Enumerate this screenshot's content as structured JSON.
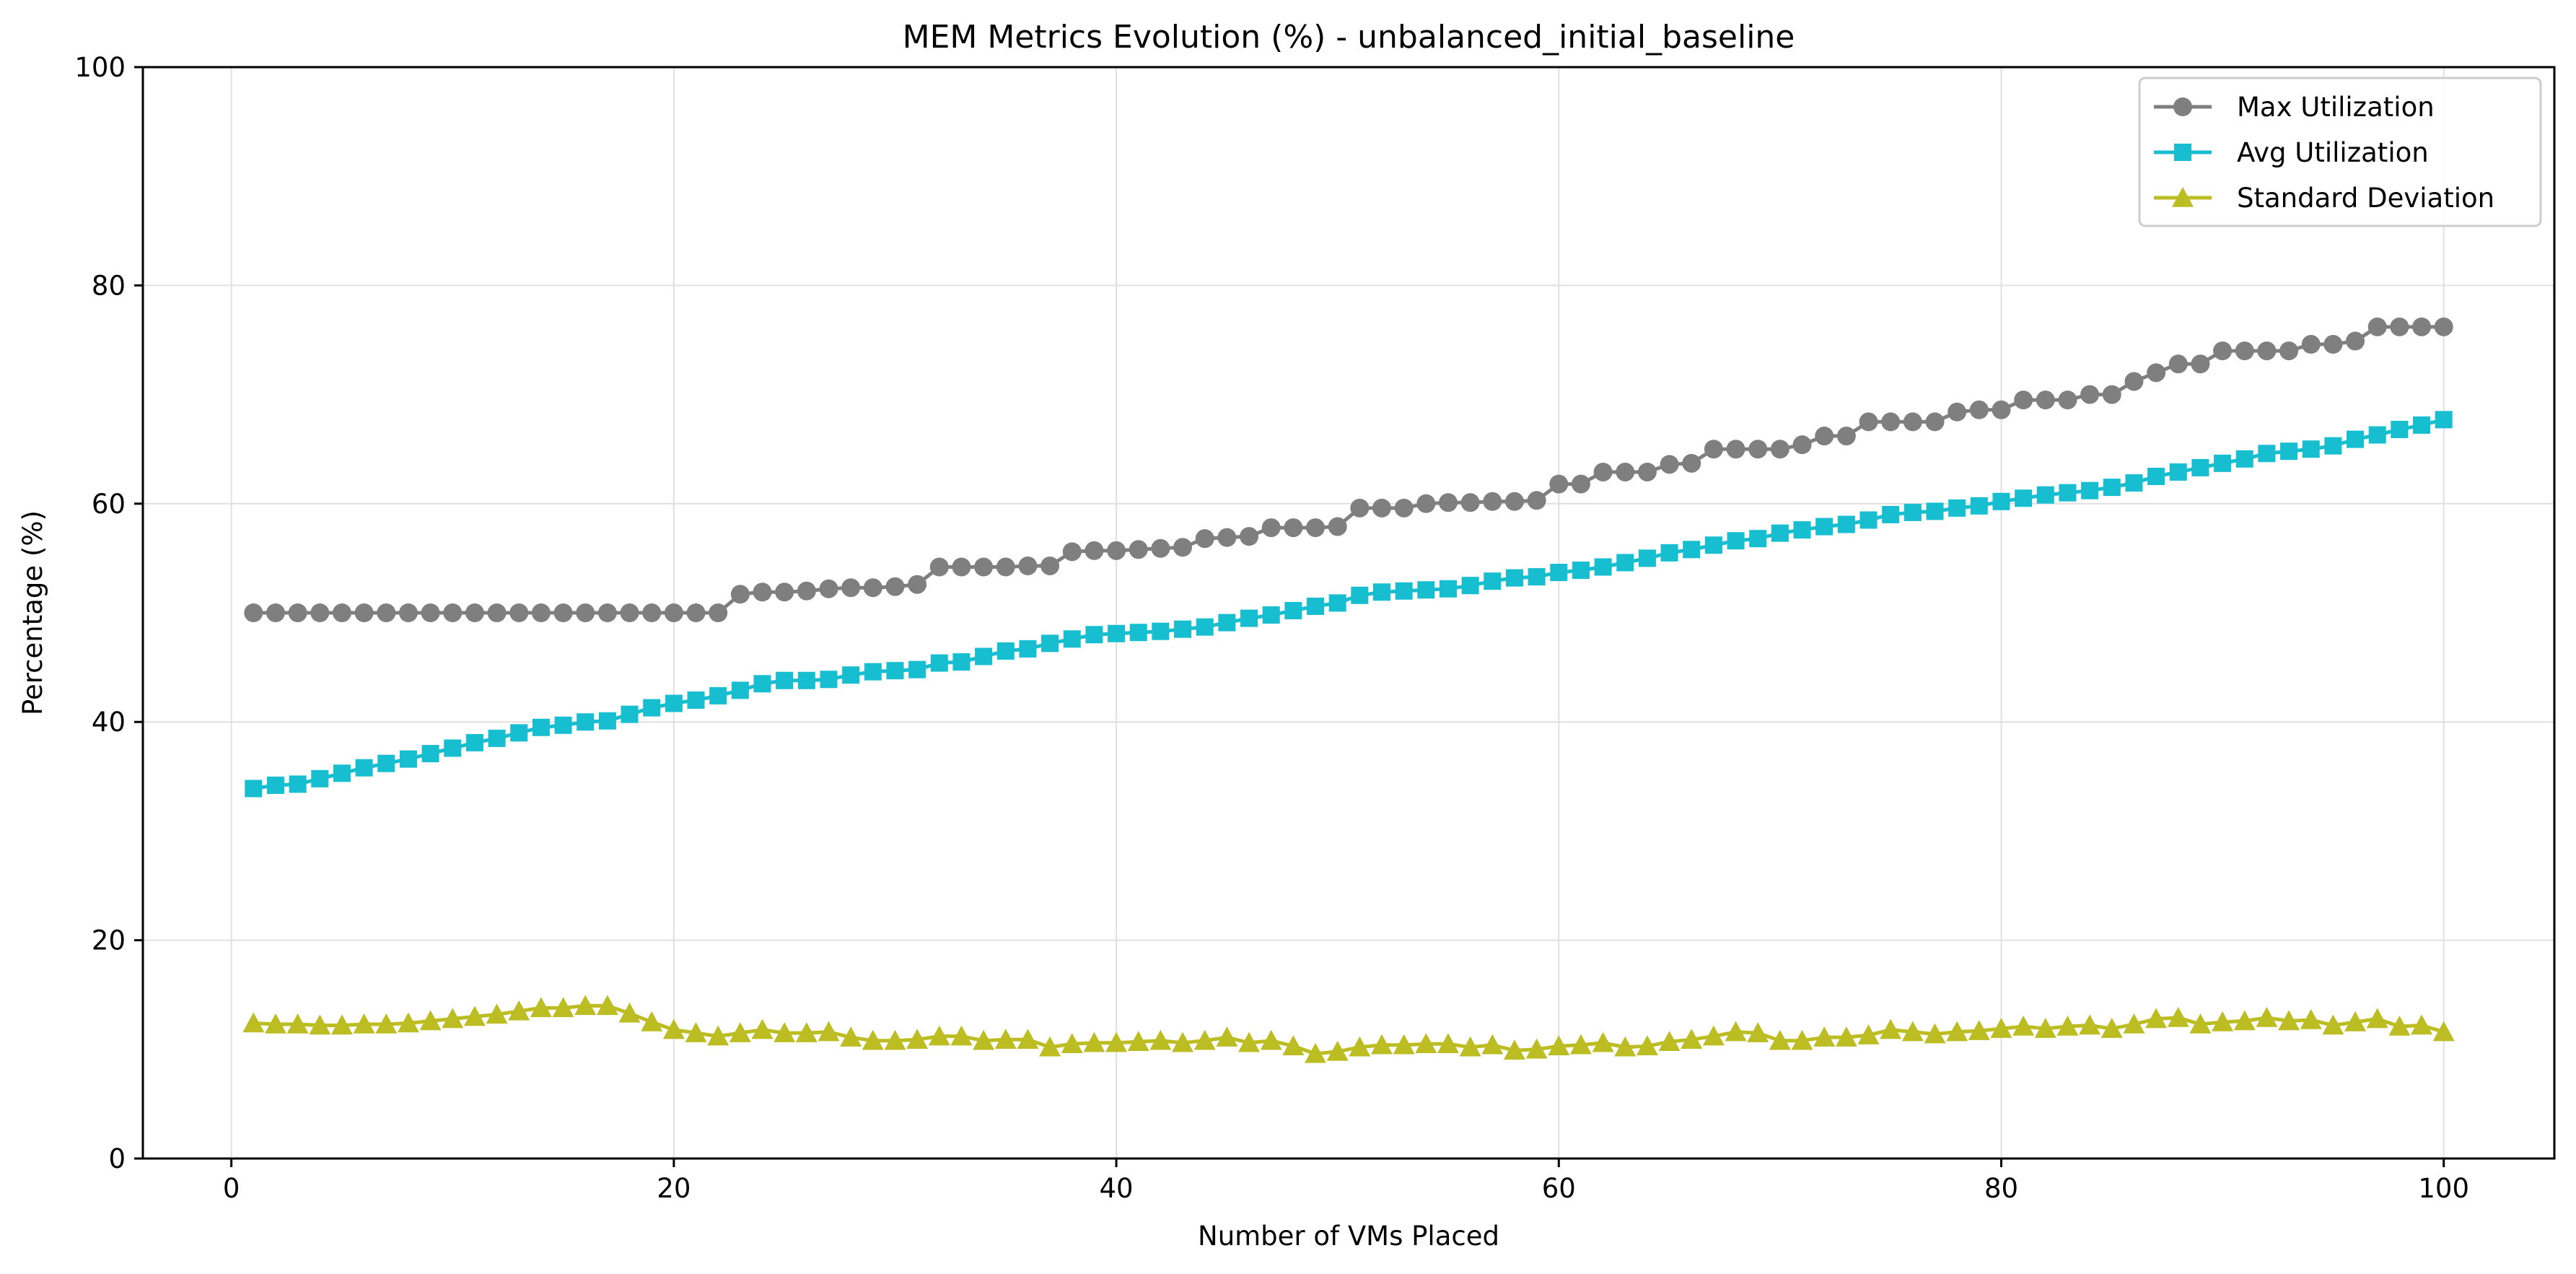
{
  "chart_data": {
    "type": "line",
    "title": "MEM Metrics Evolution (%) - unbalanced_initial_baseline",
    "xlabel": "Number of VMs Placed",
    "ylabel": "Percentage (%)",
    "xlim": [
      -4,
      105
    ],
    "ylim": [
      0,
      100
    ],
    "xticks": [
      0,
      20,
      40,
      60,
      80,
      100
    ],
    "yticks": [
      0,
      20,
      40,
      60,
      80,
      100
    ],
    "grid": true,
    "legend_position": "top-right",
    "x": [
      1,
      2,
      3,
      4,
      5,
      6,
      7,
      8,
      9,
      10,
      11,
      12,
      13,
      14,
      15,
      16,
      17,
      18,
      19,
      20,
      21,
      22,
      23,
      24,
      25,
      26,
      27,
      28,
      29,
      30,
      31,
      32,
      33,
      34,
      35,
      36,
      37,
      38,
      39,
      40,
      41,
      42,
      43,
      44,
      45,
      46,
      47,
      48,
      49,
      50,
      51,
      52,
      53,
      54,
      55,
      56,
      57,
      58,
      59,
      60,
      61,
      62,
      63,
      64,
      65,
      66,
      67,
      68,
      69,
      70,
      71,
      72,
      73,
      74,
      75,
      76,
      77,
      78,
      79,
      80,
      81,
      82,
      83,
      84,
      85,
      86,
      87,
      88,
      89,
      90,
      91,
      92,
      93,
      94,
      95,
      96,
      97,
      98,
      99,
      100
    ],
    "series": [
      {
        "name": "Max Utilization",
        "color": "#7f7f7f",
        "marker": "circle",
        "values": [
          50,
          50,
          50,
          50,
          50,
          50,
          50,
          50,
          50,
          50,
          50,
          50,
          50,
          50,
          50,
          50,
          50,
          50,
          50,
          50,
          50,
          50,
          51.7,
          51.9,
          51.9,
          52,
          52.2,
          52.3,
          52.3,
          52.4,
          52.6,
          54.2,
          54.2,
          54.2,
          54.2,
          54.3,
          54.3,
          55.6,
          55.7,
          55.7,
          55.8,
          55.9,
          56,
          56.8,
          56.9,
          57,
          57.8,
          57.8,
          57.8,
          57.9,
          59.6,
          59.6,
          59.6,
          60,
          60.1,
          60.1,
          60.2,
          60.2,
          60.3,
          61.8,
          61.8,
          62.9,
          62.9,
          62.9,
          63.6,
          63.7,
          65,
          65,
          65,
          65,
          65.4,
          66.2,
          66.2,
          67.5,
          67.5,
          67.5,
          67.5,
          68.4,
          68.6,
          68.6,
          69.5,
          69.5,
          69.5,
          70,
          70,
          71.2,
          72,
          72.8,
          72.8,
          74,
          74,
          74,
          74,
          74.6,
          74.6,
          74.9,
          76.2,
          76.2,
          76.2,
          76.2
        ]
      },
      {
        "name": "Avg Utilization",
        "color": "#17becf",
        "marker": "square",
        "values": [
          33.9,
          34.2,
          34.3,
          34.8,
          35.3,
          35.8,
          36.2,
          36.6,
          37.1,
          37.6,
          38.1,
          38.5,
          39,
          39.5,
          39.7,
          40,
          40.1,
          40.7,
          41.3,
          41.7,
          42,
          42.4,
          42.9,
          43.5,
          43.8,
          43.8,
          43.9,
          44.3,
          44.6,
          44.7,
          44.8,
          45.4,
          45.5,
          46,
          46.5,
          46.7,
          47.2,
          47.6,
          48,
          48.1,
          48.2,
          48.3,
          48.5,
          48.7,
          49.1,
          49.5,
          49.8,
          50.2,
          50.6,
          50.9,
          51.6,
          51.9,
          52,
          52.1,
          52.2,
          52.5,
          52.9,
          53.2,
          53.3,
          53.7,
          53.9,
          54.2,
          54.6,
          55,
          55.5,
          55.8,
          56.2,
          56.6,
          56.8,
          57.3,
          57.6,
          57.9,
          58.1,
          58.5,
          59,
          59.2,
          59.3,
          59.6,
          59.8,
          60.2,
          60.5,
          60.8,
          61,
          61.2,
          61.5,
          61.9,
          62.5,
          62.9,
          63.3,
          63.7,
          64.1,
          64.6,
          64.8,
          65,
          65.3,
          65.9,
          66.3,
          66.8,
          67.2,
          67.7
        ]
      },
      {
        "name": "Standard Deviation",
        "color": "#bcbd22",
        "marker": "triangle",
        "values": [
          12.4,
          12.3,
          12.3,
          12.2,
          12.2,
          12.3,
          12.3,
          12.4,
          12.6,
          12.8,
          13,
          13.2,
          13.5,
          13.8,
          13.8,
          14,
          14,
          13.3,
          12.5,
          11.8,
          11.5,
          11.2,
          11.5,
          11.8,
          11.5,
          11.5,
          11.6,
          11.1,
          10.8,
          10.8,
          10.9,
          11.2,
          11.2,
          10.8,
          10.9,
          10.9,
          10.2,
          10.5,
          10.6,
          10.6,
          10.7,
          10.8,
          10.6,
          10.8,
          11.1,
          10.6,
          10.8,
          10.3,
          9.6,
          9.8,
          10.2,
          10.4,
          10.4,
          10.5,
          10.5,
          10.2,
          10.4,
          9.9,
          10,
          10.3,
          10.4,
          10.6,
          10.2,
          10.3,
          10.7,
          10.9,
          11.2,
          11.6,
          11.5,
          10.8,
          10.8,
          11.1,
          11.1,
          11.3,
          11.8,
          11.6,
          11.4,
          11.6,
          11.7,
          11.9,
          12.1,
          11.9,
          12.1,
          12.2,
          11.9,
          12.3,
          12.8,
          12.9,
          12.3,
          12.5,
          12.6,
          12.9,
          12.6,
          12.7,
          12.2,
          12.5,
          12.8,
          12.1,
          12.2,
          11.6
        ]
      }
    ]
  }
}
